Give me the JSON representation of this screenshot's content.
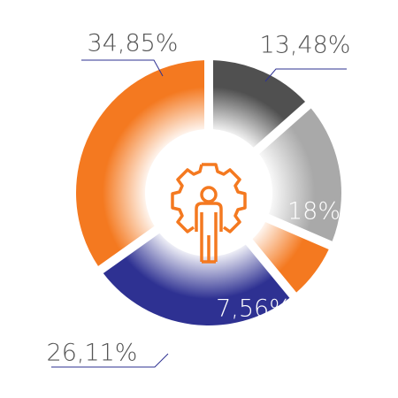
{
  "chart_data": {
    "type": "donut",
    "values": [
      13.48,
      18,
      7.56,
      26.11,
      34.85
    ],
    "value_labels": [
      "13,48%",
      "18%",
      "7,56%",
      "26,11%",
      "34,85%"
    ],
    "colors": [
      "#505050",
      "#a9a9a9",
      "#f47920",
      "#2e3192",
      "#f47920"
    ]
  }
}
